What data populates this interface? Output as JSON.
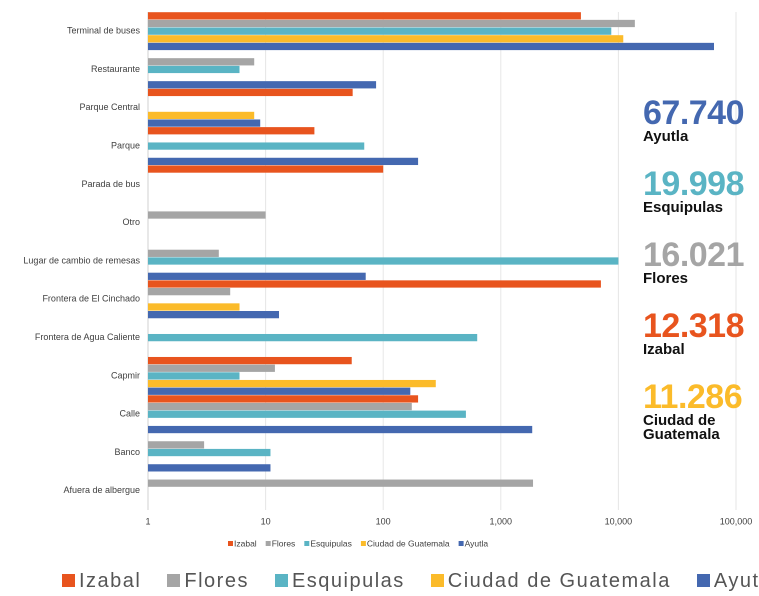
{
  "chart_data": {
    "type": "bar",
    "orientation": "horizontal",
    "xscale": "log",
    "grid": true,
    "categories": [
      "Terminal de buses",
      "Restaurante",
      "Parque Central",
      "Parque",
      "Parada de bus",
      "Otro",
      "Lugar de cambio de remesas",
      "Frontera de El Cinchado",
      "Frontera de Agua Caliente",
      "Capmir",
      "Calle",
      "Banco",
      "Afuera de albergue"
    ],
    "series": [
      {
        "name": "Izabal",
        "color": "#e8541e",
        "values": [
          4800,
          null,
          55,
          26,
          100,
          null,
          null,
          7100,
          null,
          54,
          198,
          null,
          null
        ]
      },
      {
        "name": "Flores",
        "color": "#a5a5a5",
        "values": [
          13800,
          8,
          null,
          null,
          null,
          10,
          4,
          5,
          null,
          12,
          175,
          3,
          1880
        ]
      },
      {
        "name": "Esquipulas",
        "color": "#5ab4c4",
        "values": [
          8700,
          6,
          null,
          69,
          null,
          null,
          10000,
          null,
          630,
          6,
          505,
          11,
          null
        ]
      },
      {
        "name": "Ciudad de Guatemala",
        "color": "#fbbb2a",
        "values": [
          11000,
          null,
          8,
          null,
          null,
          null,
          null,
          6,
          null,
          280,
          null,
          null,
          null
        ]
      },
      {
        "name": "Ayutla",
        "color": "#4468b0",
        "values": [
          65000,
          87,
          9,
          198,
          null,
          null,
          71,
          13,
          null,
          170,
          1850,
          11,
          null
        ]
      }
    ],
    "xlim": [
      1,
      100000
    ],
    "xticks": [
      1,
      10,
      100,
      {
        "value": 1000,
        "label": "1,000"
      },
      {
        "value": 10000,
        "label": "10,000"
      },
      {
        "value": 100000,
        "label": "100,000"
      }
    ]
  },
  "highlights": [
    {
      "value": "67.740",
      "label": "Ayutla",
      "color": "#4468b0"
    },
    {
      "value": "19.998",
      "label": "Esquipulas",
      "color": "#5ab4c4"
    },
    {
      "value": "16.021",
      "label": "Flores",
      "color": "#a5a5a5"
    },
    {
      "value": "12.318",
      "label": "Izabal",
      "color": "#e8541e"
    },
    {
      "value": "11.286",
      "label": "Ciudad de Guatemala",
      "color": "#fbbb2a"
    }
  ]
}
